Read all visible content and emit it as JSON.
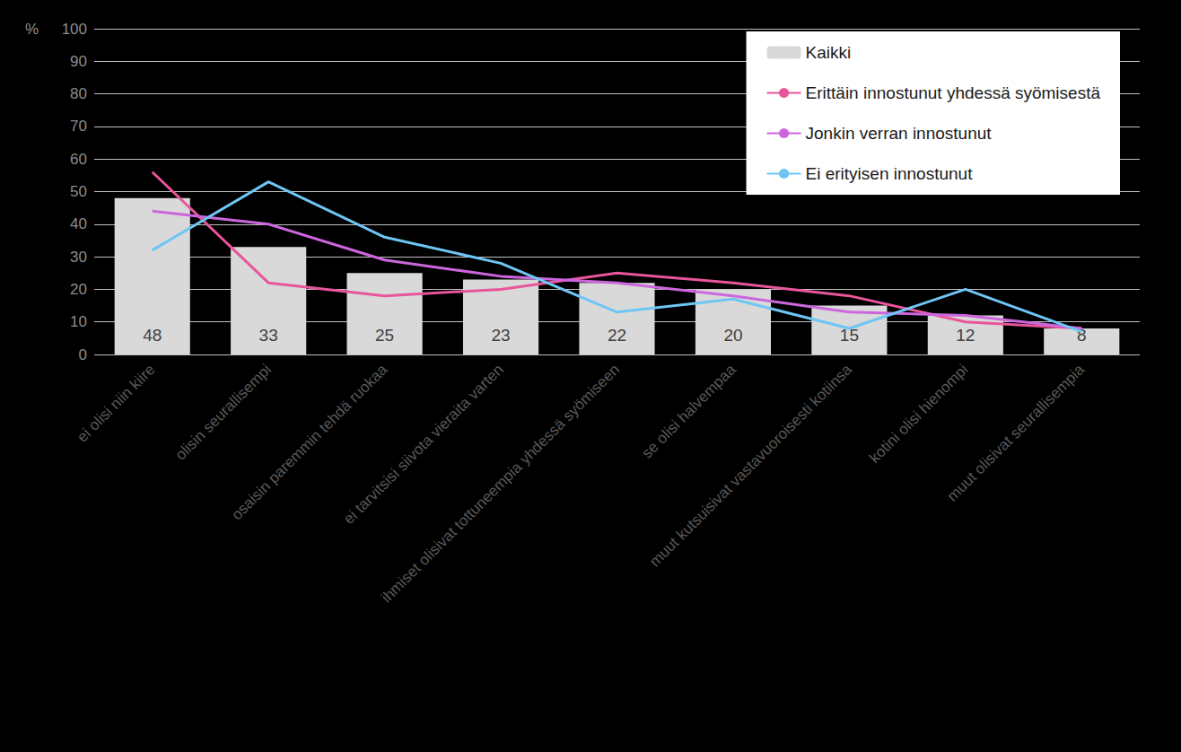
{
  "chart_data": {
    "type": "bar",
    "y_label": "%",
    "categories": [
      "ei olisi niin kiire",
      "olisin seurallisempi",
      "osaisin paremmin tehdä ruokaa",
      "ei tarvitsisi siivota vieraita varten",
      "ihmiset olisivat tottuneempia yhdessä syömiseen",
      "se olisi halvempaa",
      "muut kutsuisivat vastavuoroisesti kotiinsa",
      "kotini olisi hienompi",
      "muut olisivat seurallisempia"
    ],
    "series": [
      {
        "name": "Kaikki",
        "type": "bar",
        "color": "#d9d9d9",
        "data_labels": true,
        "values": [
          48,
          33,
          25,
          23,
          22,
          20,
          15,
          12,
          8
        ]
      },
      {
        "name": "Erittäin innostunut yhdessä syömisestä",
        "type": "line",
        "color": "#e8559a",
        "values": [
          56,
          22,
          18,
          20,
          25,
          22,
          18,
          10,
          8
        ]
      },
      {
        "name": "Jonkin verran innostunut",
        "type": "line",
        "color": "#cc66dd",
        "values": [
          44,
          40,
          29,
          24,
          22,
          18,
          13,
          12,
          8
        ]
      },
      {
        "name": "Ei erityisen innostunut",
        "type": "line",
        "color": "#6ec6f5",
        "values": [
          32,
          53,
          36,
          28,
          13,
          17,
          8,
          20,
          7
        ]
      }
    ],
    "ylim": [
      0,
      100
    ],
    "yticks": [
      0,
      10,
      20,
      30,
      40,
      50,
      60,
      70,
      80,
      90,
      100
    ],
    "grid": true,
    "legend": "upper right"
  }
}
